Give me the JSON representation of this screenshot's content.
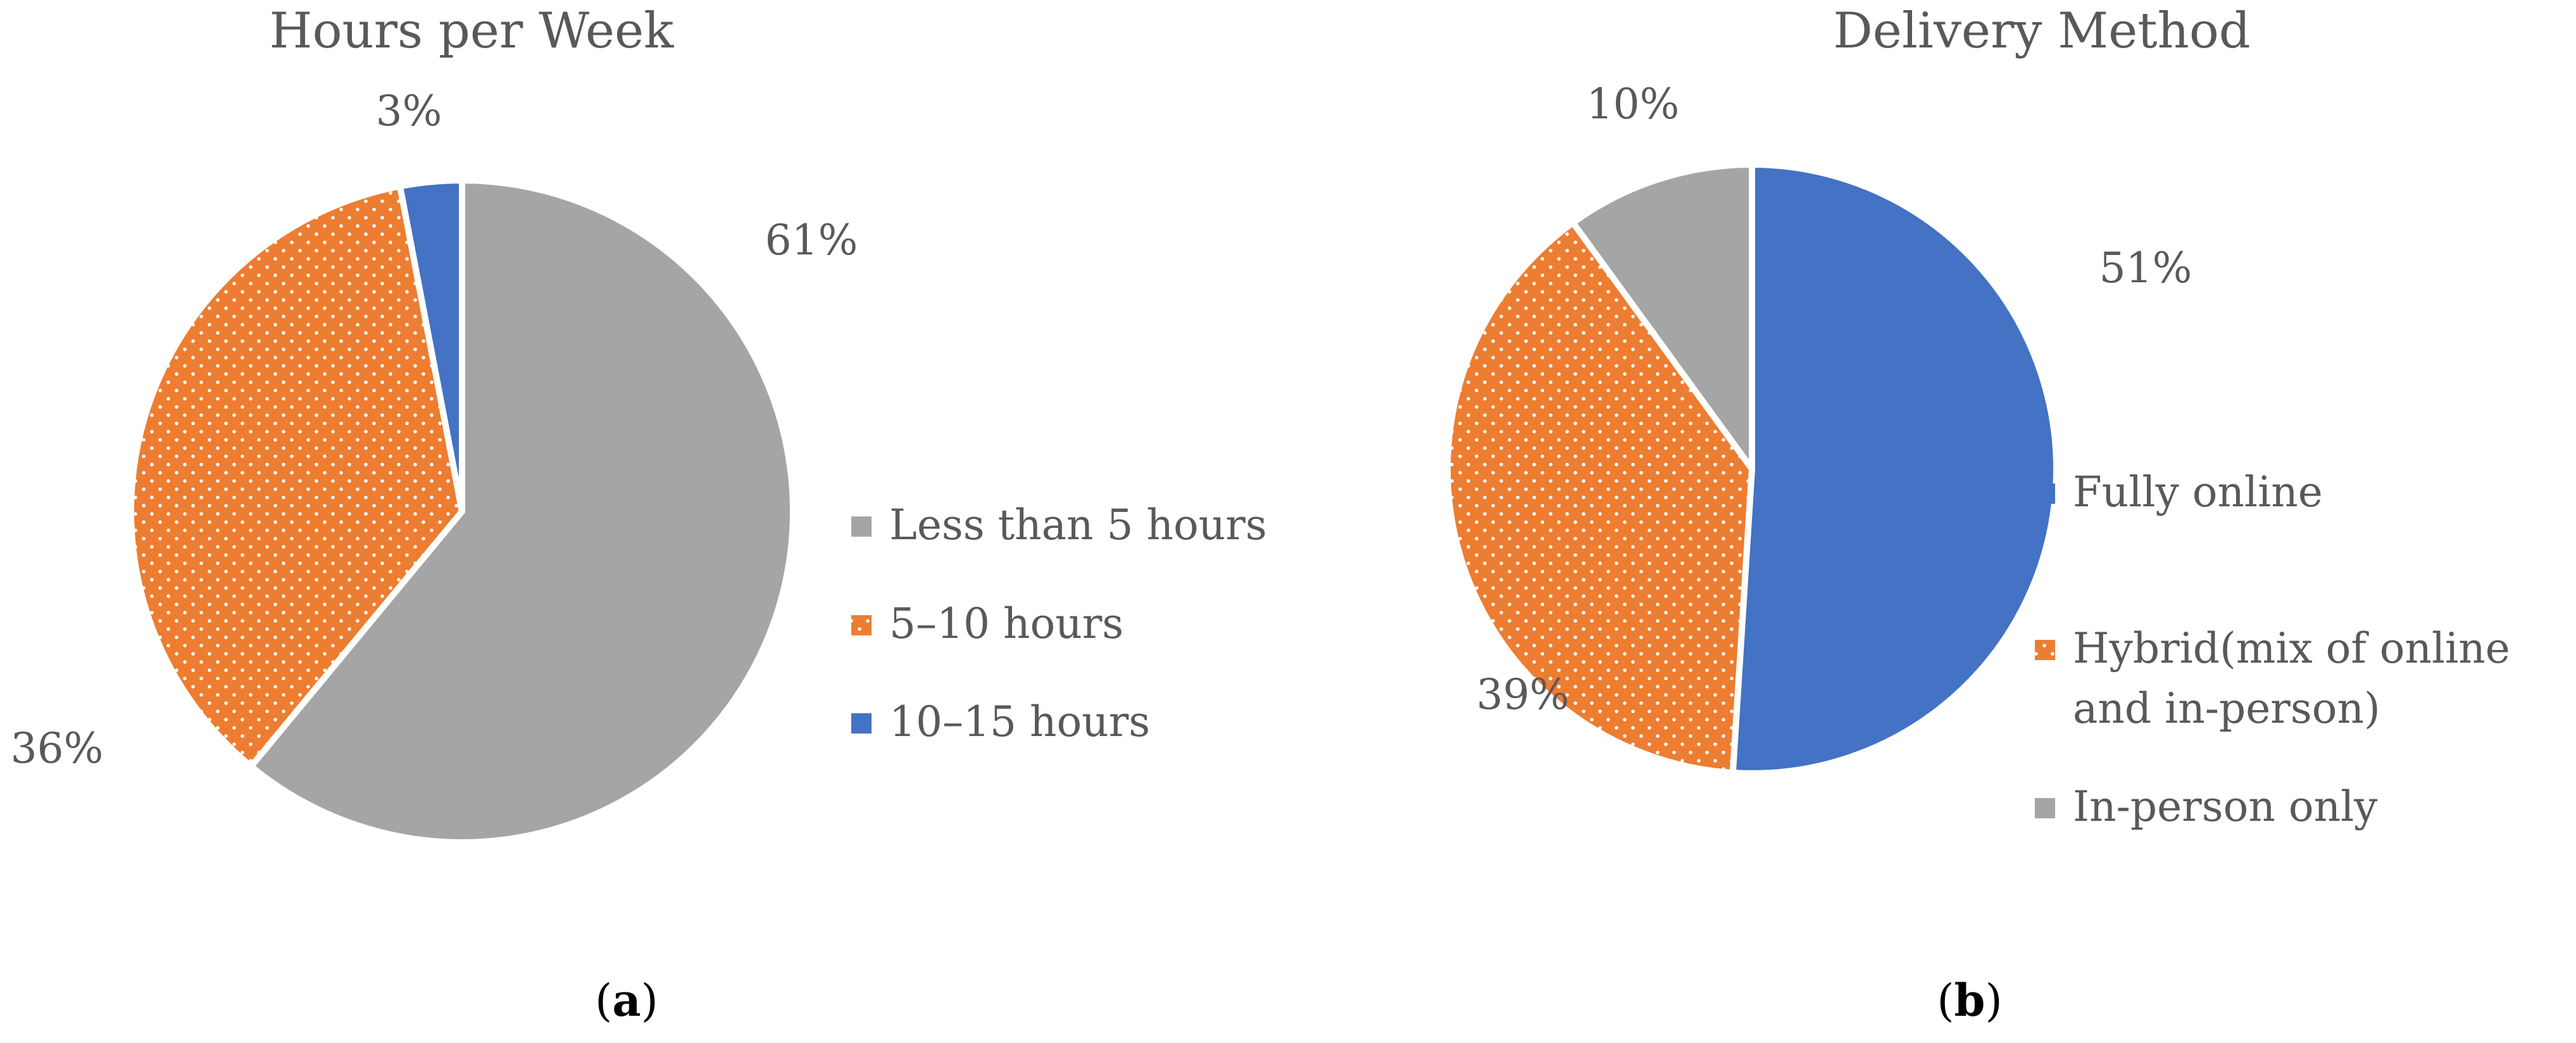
{
  "chart_data": [
    {
      "type": "pie",
      "panel": "a",
      "title": "Hours per Week",
      "categories": [
        "Less than 5 hours",
        "5–10 hours",
        "10–15 hours"
      ],
      "values": [
        61,
        36,
        3
      ],
      "data_labels": [
        "61%",
        "36%",
        "3%"
      ],
      "colors": [
        "#a5a5a5",
        "#ed7d31",
        "#4472c4"
      ],
      "patterns": [
        "solid",
        "dots",
        "solid"
      ],
      "legend": "right",
      "caption": "(a)"
    },
    {
      "type": "pie",
      "panel": "b",
      "title": "Delivery Method",
      "categories": [
        "Fully online",
        "Hybrid(mix of online and in-person)",
        "In-person only"
      ],
      "legend_lines": [
        [
          "Fully online"
        ],
        [
          "Hybrid(mix of online",
          "and in-person)"
        ],
        [
          "In-person only"
        ]
      ],
      "values": [
        51,
        39,
        10
      ],
      "data_labels": [
        "51%",
        "39%",
        "10%"
      ],
      "colors": [
        "#4472c4",
        "#ed7d31",
        "#a5a5a5"
      ],
      "patterns": [
        "solid",
        "dots",
        "solid"
      ],
      "legend": "right",
      "caption": "(b)"
    }
  ]
}
